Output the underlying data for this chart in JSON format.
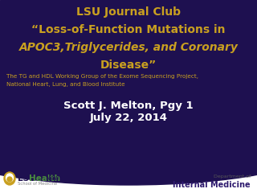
{
  "bg_color": "#ffffff",
  "purple_bg": "#1e1050",
  "gold_title_color": "#c9a020",
  "white_text": "#ffffff",
  "line1": "LSU Journal Club",
  "line2": "“Loss-of-Function Mutations in",
  "line3_normal": "A",
  "line3_italic": "POC3",
  "line3_rest": ",Triglycerides, and Coronary",
  "line4": "Disease”",
  "subtitle_line1": "The TG and HDL Working Group of the Exome Sequencing Project,",
  "subtitle_line2": "National Heart, Lung, and Blood Institute",
  "presenter": "Scott J. Melton, Pgy 1",
  "date": "July 22, 2014",
  "gold_logo": "#c9a020",
  "green_logo": "#4a8c3f",
  "dept_text_color": "#555555",
  "dept_bold_color": "#2e1a6e"
}
